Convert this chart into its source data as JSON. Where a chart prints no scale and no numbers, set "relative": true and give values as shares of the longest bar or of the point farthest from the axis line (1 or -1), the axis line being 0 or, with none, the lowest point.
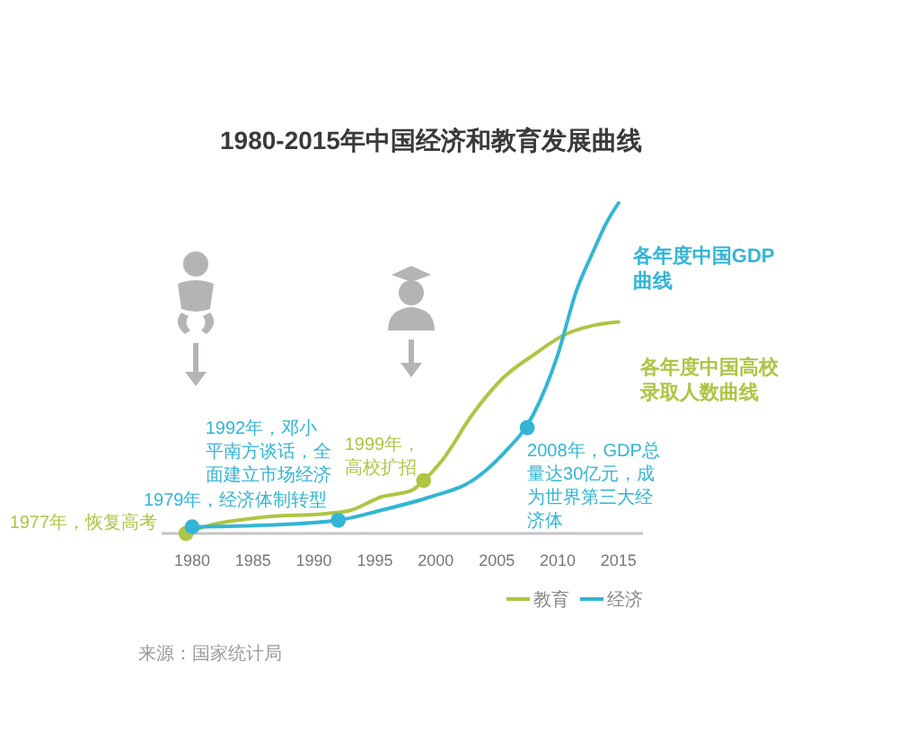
{
  "chart_data": {
    "type": "line",
    "title": "1980-2015年中国经济和教育发展曲线",
    "relative": true,
    "xlim": [
      1977.5,
      2017
    ],
    "xticks": [
      1980,
      1985,
      1990,
      1995,
      2000,
      2005,
      2010,
      2015
    ],
    "legend": "bottom right",
    "series": [
      {
        "name": "教育",
        "color": "#aec545",
        "x": [
          1979.5,
          1981,
          1986,
          1991,
          1993,
          1995.5,
          1998,
          1999,
          2000.5,
          2003,
          2005.5,
          2008,
          2010.5,
          2013,
          2015
        ],
        "values": [
          0,
          0.02,
          0.05,
          0.06,
          0.07,
          0.11,
          0.13,
          0.16,
          0.22,
          0.36,
          0.47,
          0.54,
          0.6,
          0.63,
          0.64
        ]
      },
      {
        "name": "经济",
        "color": "#33b5d5",
        "x": [
          1980,
          1986,
          1992,
          1995.5,
          1999.5,
          2003,
          2005.5,
          2008,
          2010,
          2011.5,
          2013,
          2014,
          2015
        ],
        "values": [
          0.02,
          0.025,
          0.04,
          0.07,
          0.11,
          0.16,
          0.24,
          0.36,
          0.54,
          0.73,
          0.86,
          0.94,
          1
        ]
      },
      {
        "type": "scatter",
        "color": "#aec545",
        "x": [
          1979.5,
          1999
        ],
        "values": [
          0,
          0.16
        ]
      },
      {
        "type": "scatter",
        "color": "#33b5d5",
        "x": [
          1980,
          1992,
          2007.5
        ],
        "values": [
          0.02,
          0.04,
          0.32
        ]
      }
    ],
    "annotations": [
      {
        "text": "1977年，恢复高考",
        "x": 1979.5,
        "y": 0
      },
      {
        "text": "1979年，经济体制转型",
        "x": 1980,
        "y": 0.02
      },
      {
        "text": "1992年，邓小平南方谈话，全面建立市场经济",
        "x": 1992,
        "y": 0.04
      },
      {
        "text": "1999年，高校扩招",
        "x": 1999,
        "y": 0.16
      },
      {
        "text": "2008年，GDP总量达30亿元，成为世界第三大经济体",
        "x": 2007.5,
        "y": 0.32
      },
      {
        "text": "各年度中国GDP曲线",
        "x": 2015,
        "y": 1
      },
      {
        "text": "各年度中国高校录取人数曲线",
        "x": 2015,
        "y": 0.64
      },
      "来源：国家统计局"
    ]
  }
}
